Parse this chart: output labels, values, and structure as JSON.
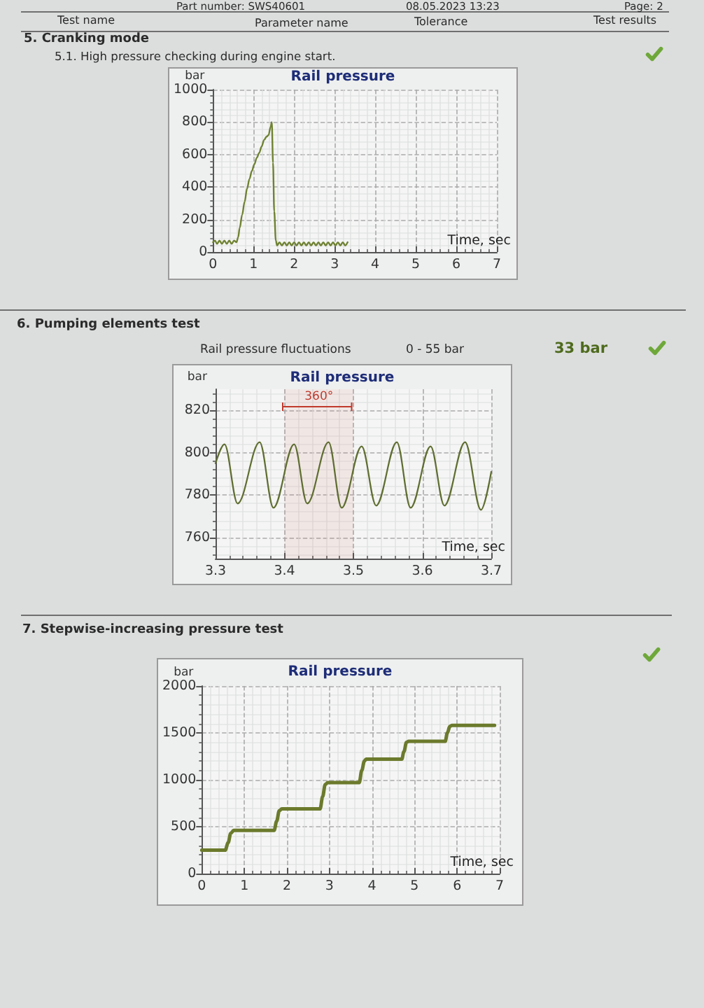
{
  "chart_data": [
    {
      "type": "line",
      "title": "Rail pressure",
      "xlabel": "Time, sec",
      "ylabel": "bar",
      "x": [
        0,
        0.05,
        0.1,
        0.16,
        0.22,
        0.28,
        0.34,
        0.4,
        0.46,
        0.52,
        0.58,
        0.62,
        0.66,
        0.72,
        0.78,
        0.84,
        0.9,
        0.96,
        1.02,
        1.08,
        1.14,
        1.2,
        1.26,
        1.32,
        1.37,
        1.42,
        1.45,
        1.48,
        1.51,
        1.55,
        1.58,
        1.64,
        1.7,
        1.76,
        1.82,
        1.88,
        1.94,
        2.0,
        2.06,
        2.12,
        2.18,
        2.24,
        2.3,
        2.36,
        2.42,
        2.48,
        2.54,
        2.6,
        2.66,
        2.72,
        2.78,
        2.84,
        2.9,
        2.96,
        3.02,
        3.08,
        3.14,
        3.2,
        3.26,
        3.32
      ],
      "values": [
        60,
        70,
        50,
        70,
        50,
        70,
        50,
        70,
        50,
        70,
        60,
        90,
        150,
        230,
        310,
        390,
        450,
        500,
        540,
        580,
        610,
        650,
        690,
        710,
        720,
        770,
        800,
        550,
        250,
        70,
        40,
        60,
        40,
        60,
        40,
        60,
        40,
        60,
        40,
        60,
        40,
        60,
        40,
        60,
        40,
        60,
        40,
        60,
        40,
        60,
        40,
        60,
        40,
        60,
        40,
        60,
        40,
        60,
        40,
        60
      ],
      "color": "#6f8232",
      "xlim": [
        0,
        7
      ],
      "xticks": [
        0,
        1,
        2,
        3,
        4,
        5,
        6,
        7
      ],
      "ylim": [
        0,
        1000
      ],
      "yticks": [
        0,
        200,
        400,
        600,
        800,
        1000
      ],
      "grid": true,
      "annotations": [
        "Part number: SWS40601",
        "08.05.2023 13:23",
        "Page: 2",
        "Test name",
        "Parameter name",
        "Tolerance",
        "Test results",
        "5. Cranking mode",
        "5.1. High pressure checking during engine start."
      ]
    },
    {
      "type": "line",
      "title": "Rail pressure",
      "xlabel": "Time, sec",
      "ylabel": "bar",
      "x": [
        3.3,
        3.313,
        3.332,
        3.364,
        3.384,
        3.414,
        3.433,
        3.464,
        3.483,
        3.512,
        3.533,
        3.563,
        3.583,
        3.612,
        3.632,
        3.662,
        3.685,
        3.7
      ],
      "values": [
        795,
        804,
        776,
        805,
        774,
        804,
        776,
        805,
        774,
        803,
        775,
        805,
        774,
        803,
        775,
        805,
        773,
        791
      ],
      "color": "#5f6d30",
      "xlim": [
        3.3,
        3.7
      ],
      "xticks": [
        3.3,
        3.4,
        3.5,
        3.6,
        3.7
      ],
      "ylim": [
        750,
        830
      ],
      "yticks": [
        760,
        780,
        800,
        820
      ],
      "grid": true,
      "bands": [
        {
          "axis": "x",
          "from": 3.4,
          "to": 3.5,
          "label": "360°",
          "color": "#c0392b"
        }
      ],
      "annotations": [
        "6. Pumping elements test",
        "Rail pressure fluctuations",
        "0 - 55 bar",
        "33 bar"
      ]
    },
    {
      "type": "line",
      "title": "Rail pressure",
      "xlabel": "Time, sec",
      "ylabel": "bar",
      "x": [
        0,
        0.55,
        0.62,
        0.68,
        0.75,
        1.7,
        1.76,
        1.82,
        1.88,
        2.78,
        2.84,
        2.9,
        2.96,
        3.7,
        3.76,
        3.82,
        3.86,
        4.7,
        4.75,
        4.81,
        4.86,
        5.72,
        5.77,
        5.83,
        5.88,
        6.88
      ],
      "values": [
        250,
        250,
        330,
        430,
        460,
        460,
        560,
        670,
        690,
        690,
        820,
        950,
        970,
        970,
        1100,
        1200,
        1220,
        1220,
        1300,
        1400,
        1410,
        1410,
        1500,
        1570,
        1580,
        1580
      ],
      "color": "#6b7a2c",
      "xlim": [
        0,
        7
      ],
      "xticks": [
        0,
        1,
        2,
        3,
        4,
        5,
        6,
        7
      ],
      "ylim": [
        0,
        2000
      ],
      "yticks": [
        0,
        500,
        1000,
        1500,
        2000
      ],
      "grid": true,
      "annotations": [
        "7. Stepwise-increasing pressure test"
      ]
    }
  ]
}
